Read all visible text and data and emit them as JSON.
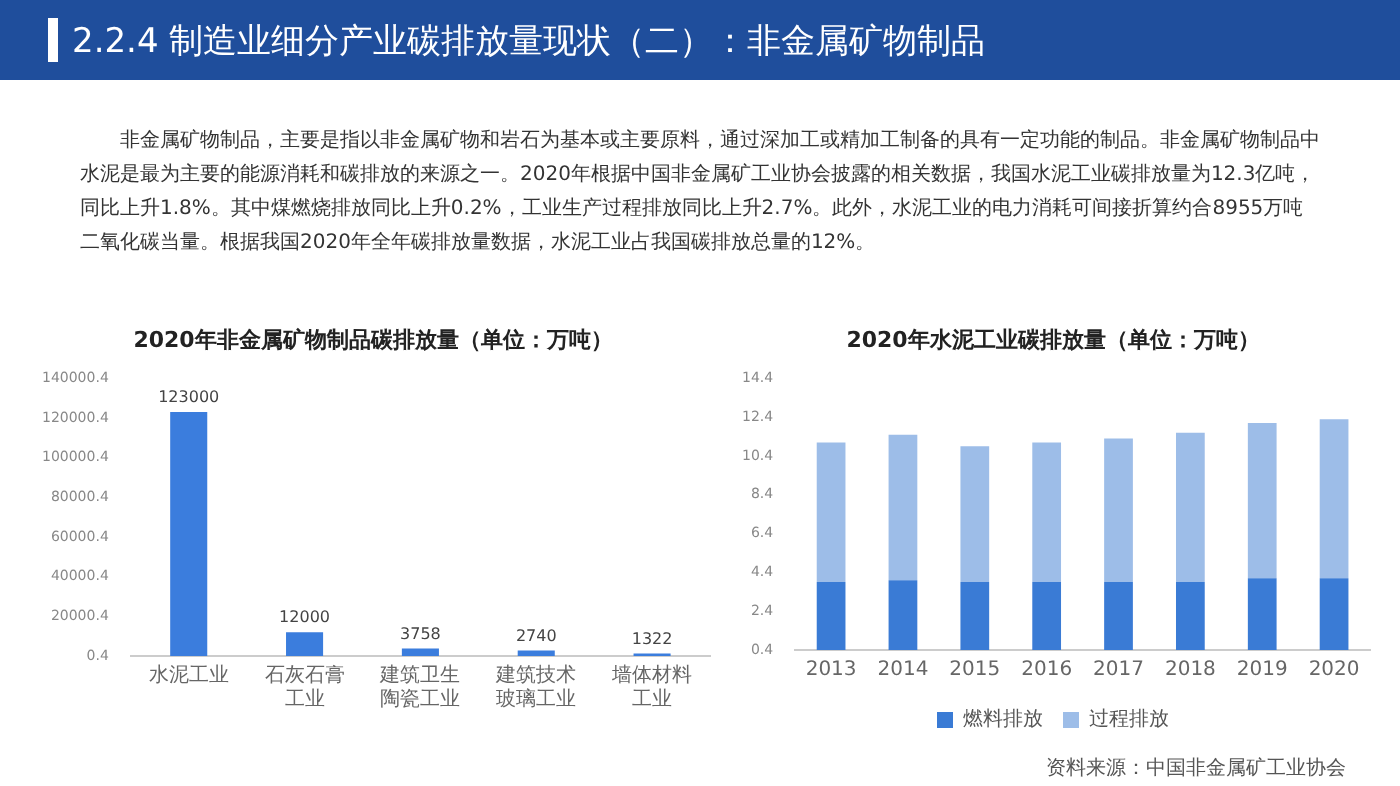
{
  "chart_data": [
    {
      "type": "other",
      "title": "2.2.4 制造业细分产业碳排放量现状（二）：非金属矿物制品",
      "annotations": [
        "非金属矿物制品，主要是指以非金属矿物和岩石为基本或主要原料，通过深加工或精加工制备的具有一定功能的制品。非金属矿物制品中水泥是最为主要的能源消耗和碳排放的来源之一。2020年根据中国非金属矿工业协会披露的相关数据，我国水泥工业碳排放量为12.3亿吨，同比上升1.8%。其中煤燃烧排放同比上升0.2%，工业生产过程排放同比上升2.7%。此外，水泥工业的电力消耗可间接折算约合8955万吨二氧化碳当量。根据我国2020年全年碳排放量数据，水泥工业占我国碳排放总量的12%。"
      ]
    },
    {
      "type": "bar",
      "title": "2020年非金属矿物制品碳排放量（单位：万吨）",
      "categories": [
        "水泥工业",
        "石灰石膏工业",
        "建筑卫生陶瓷工业",
        "建筑技术玻璃工业",
        "墙体材料工业"
      ],
      "values": [
        123000,
        12000,
        3758,
        2740,
        1322
      ],
      "color": "#3b7ddd",
      "ylim": [
        0.4,
        140000.4
      ],
      "yticks": [
        0.4,
        20000.4,
        40000.4,
        60000.4,
        80000.4,
        100000.4,
        120000.4,
        140000.4
      ],
      "data_labels": true
    },
    {
      "type": "bar",
      "title": "2020年水泥工业碳排放量（单位：万吨）",
      "categories": [
        "2013",
        "2014",
        "2015",
        "2016",
        "2017",
        "2018",
        "2019",
        "2020"
      ],
      "stacked": true,
      "legend": "bottom",
      "ylim": [
        0.4,
        14.4
      ],
      "yticks": [
        0.4,
        2.4,
        4.4,
        6.4,
        8.4,
        10.4,
        12.4,
        14.4
      ],
      "series": [
        {
          "name": "燃料排放",
          "color": "#3a7bd5",
          "values": [
            3.9,
            4.0,
            3.9,
            3.9,
            3.9,
            3.9,
            4.1,
            4.1
          ]
        },
        {
          "name": "过程排放",
          "color": "#9dbde8",
          "values": [
            7.2,
            7.5,
            7.0,
            7.2,
            7.4,
            7.7,
            8.0,
            8.2
          ]
        }
      ],
      "annotations": [
        "资料来源：中国非金属矿工业协会"
      ]
    }
  ]
}
